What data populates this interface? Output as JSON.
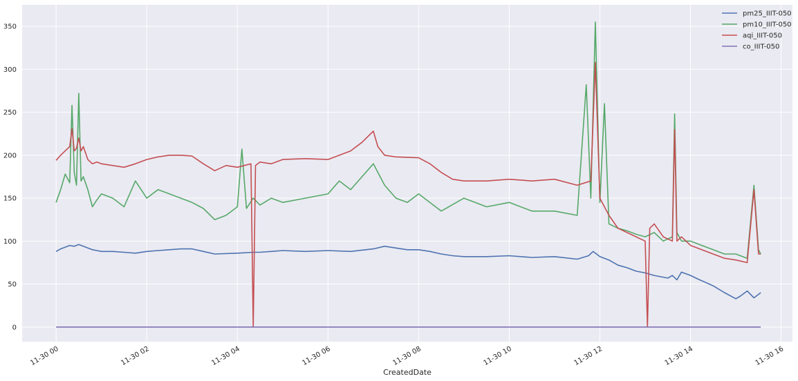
{
  "chart_data": {
    "type": "line",
    "xlabel": "CreatedDate",
    "ylabel": "",
    "title": "",
    "x_tick_labels": [
      "11-30 00",
      "11-30 02",
      "11-30 04",
      "11-30 06",
      "11-30 08",
      "11-30 10",
      "11-30 12",
      "11-30 14",
      "11-30 16"
    ],
    "x_tick_hours": [
      0,
      2,
      4,
      6,
      8,
      10,
      12,
      14,
      16
    ],
    "xlim_hours": [
      -0.75,
      16.25
    ],
    "y_ticks": [
      0,
      50,
      100,
      150,
      200,
      250,
      300,
      350
    ],
    "ylim": [
      -17,
      375
    ],
    "grid": true,
    "legend_position": "top-right",
    "colors": {
      "background": "#EAEAF2",
      "grid": "#FFFFFF",
      "pm25": "#4C72B0",
      "pm10": "#55A868",
      "aqi": "#C44E52",
      "co": "#8172B2"
    },
    "series": [
      {
        "name": "pm25_IIIT-050",
        "color": "#4C72B0",
        "x_hours": [
          0,
          0.1,
          0.2,
          0.3,
          0.4,
          0.5,
          0.6,
          0.7,
          0.8,
          0.9,
          1.0,
          1.25,
          1.5,
          1.75,
          2.0,
          2.25,
          2.5,
          2.75,
          3.0,
          3.25,
          3.5,
          4.0,
          4.35,
          4.5,
          4.75,
          5.0,
          5.5,
          6.0,
          6.5,
          7.0,
          7.25,
          7.5,
          7.75,
          8.0,
          8.25,
          8.5,
          8.75,
          9.0,
          9.5,
          10.0,
          10.5,
          11.0,
          11.5,
          11.75,
          11.85,
          12.0,
          12.2,
          12.4,
          12.6,
          12.8,
          13.0,
          13.2,
          13.4,
          13.5,
          13.6,
          13.7,
          13.8,
          14.0,
          14.2,
          14.5,
          14.75,
          15.0,
          15.1,
          15.25,
          15.4,
          15.5,
          15.55
        ],
        "values": [
          88,
          91,
          93,
          95,
          94,
          96,
          94,
          92,
          90,
          89,
          88,
          88,
          87,
          86,
          88,
          89,
          90,
          91,
          91,
          88,
          85,
          86,
          87,
          87,
          88,
          89,
          88,
          89,
          88,
          91,
          94,
          92,
          90,
          90,
          88,
          85,
          83,
          82,
          82,
          83,
          81,
          82,
          79,
          83,
          88,
          82,
          78,
          72,
          69,
          65,
          63,
          60,
          58,
          57,
          60,
          55,
          64,
          60,
          55,
          48,
          40,
          33,
          36,
          42,
          34,
          38,
          40
        ]
      },
      {
        "name": "pm10_IIIT-050",
        "color": "#55A868",
        "x_hours": [
          0,
          0.1,
          0.2,
          0.3,
          0.35,
          0.4,
          0.45,
          0.5,
          0.55,
          0.6,
          0.7,
          0.8,
          0.9,
          1.0,
          1.25,
          1.5,
          1.75,
          2.0,
          2.25,
          2.5,
          2.75,
          3.0,
          3.25,
          3.5,
          3.75,
          4.0,
          4.1,
          4.2,
          4.35,
          4.5,
          4.75,
          5.0,
          5.5,
          6.0,
          6.25,
          6.5,
          6.75,
          7.0,
          7.25,
          7.5,
          7.75,
          8.0,
          8.5,
          9.0,
          9.5,
          10.0,
          10.5,
          11.0,
          11.5,
          11.7,
          11.8,
          11.9,
          12.0,
          12.1,
          12.2,
          12.4,
          12.6,
          12.8,
          13.0,
          13.2,
          13.4,
          13.6,
          13.65,
          13.7,
          13.8,
          14.0,
          14.25,
          14.5,
          14.75,
          15.0,
          15.25,
          15.4,
          15.5,
          15.55
        ],
        "values": [
          145,
          160,
          178,
          168,
          258,
          180,
          165,
          272,
          170,
          175,
          160,
          140,
          148,
          155,
          150,
          140,
          170,
          150,
          160,
          155,
          150,
          145,
          138,
          125,
          130,
          140,
          207,
          138,
          150,
          142,
          150,
          145,
          150,
          155,
          170,
          160,
          175,
          190,
          165,
          150,
          145,
          155,
          135,
          150,
          140,
          145,
          135,
          135,
          130,
          282,
          150,
          355,
          145,
          260,
          120,
          115,
          112,
          108,
          105,
          110,
          100,
          105,
          248,
          110,
          100,
          100,
          95,
          90,
          85,
          85,
          80,
          165,
          90,
          85
        ]
      },
      {
        "name": "aqi_IIIT-050",
        "color": "#C44E52",
        "x_hours": [
          0,
          0.1,
          0.2,
          0.3,
          0.35,
          0.4,
          0.45,
          0.5,
          0.55,
          0.6,
          0.7,
          0.8,
          0.9,
          1.0,
          1.25,
          1.5,
          1.75,
          2.0,
          2.25,
          2.5,
          2.75,
          3.0,
          3.25,
          3.5,
          3.75,
          4.0,
          4.3,
          4.35,
          4.4,
          4.5,
          4.75,
          5.0,
          5.5,
          6.0,
          6.25,
          6.5,
          6.75,
          7.0,
          7.1,
          7.25,
          7.5,
          8.0,
          8.25,
          8.5,
          8.75,
          9.0,
          9.5,
          10.0,
          10.5,
          11.0,
          11.5,
          11.8,
          11.9,
          12.0,
          12.2,
          12.4,
          12.6,
          12.8,
          13.0,
          13.05,
          13.1,
          13.2,
          13.4,
          13.6,
          13.65,
          13.7,
          13.8,
          14.0,
          14.25,
          14.5,
          14.75,
          15.0,
          15.25,
          15.4,
          15.5,
          15.55
        ],
        "values": [
          194,
          200,
          205,
          210,
          231,
          205,
          208,
          220,
          205,
          210,
          195,
          190,
          192,
          190,
          188,
          186,
          190,
          195,
          198,
          200,
          200,
          199,
          190,
          182,
          188,
          186,
          190,
          0,
          188,
          192,
          190,
          195,
          196,
          195,
          200,
          205,
          215,
          228,
          210,
          200,
          198,
          197,
          190,
          180,
          172,
          170,
          170,
          172,
          170,
          172,
          165,
          170,
          308,
          150,
          130,
          115,
          110,
          105,
          100,
          0,
          115,
          120,
          105,
          100,
          230,
          100,
          105,
          95,
          90,
          85,
          80,
          78,
          75,
          160,
          85,
          85
        ]
      },
      {
        "name": "co_IIIT-050",
        "color": "#8172B2",
        "x_hours": [
          0,
          15.55
        ],
        "values": [
          0,
          0
        ]
      }
    ]
  }
}
